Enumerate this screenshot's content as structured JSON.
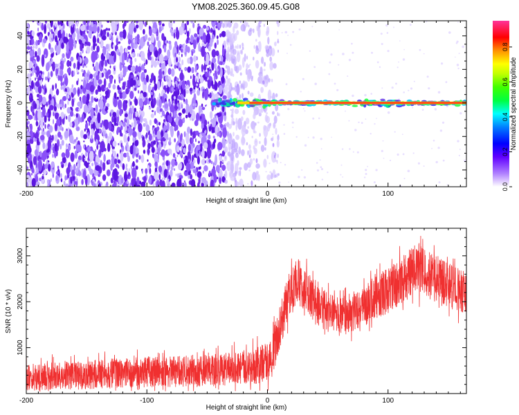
{
  "title": "YM08.2025.360.09.45.G08",
  "colors": {
    "snr_line": "#f03030",
    "noise": "#7a1fd8",
    "colormap": [
      "#ffffff",
      "#a020f0",
      "#5a00ff",
      "#0000ff",
      "#00ffff",
      "#00ff00",
      "#ffff00",
      "#ff8000",
      "#ff0000",
      "#ff3399"
    ]
  },
  "chart_data": [
    {
      "type": "heatmap",
      "title": "YM08.2025.360.09.45.G08",
      "xlabel": "Height of straight line (km)",
      "ylabel": "Frequency (Hz)",
      "xlim": [
        -200,
        165
      ],
      "ylim": [
        -50,
        49
      ],
      "x_ticks": [
        -200,
        -100,
        0,
        100
      ],
      "y_ticks": [
        -40,
        -20,
        0,
        20,
        40
      ],
      "grid": false,
      "colorbar": {
        "label": "Normalized spectral amplitude",
        "range": [
          0.0,
          0.95
        ],
        "ticks": [
          0.0,
          0.2,
          0.4,
          0.6,
          0.8
        ]
      },
      "features": {
        "noise_region_x": [
          -200,
          -10
        ],
        "signal_line_frequency_hz": 0,
        "signal_line_x": [
          -45,
          165
        ],
        "dominant_amplitude": 0.9
      }
    },
    {
      "type": "line",
      "xlabel": "Height of straight line (km)",
      "ylabel": "SNR (10 * v/v)",
      "xlim": [
        -200,
        165
      ],
      "ylim": [
        0,
        3600
      ],
      "x_ticks": [
        -200,
        -100,
        0,
        100
      ],
      "y_ticks": [
        1000,
        2000,
        3000
      ],
      "grid": false,
      "series": [
        {
          "x": [
            -200,
            -180,
            -160,
            -140,
            -120,
            -100,
            -80,
            -60,
            -40,
            -20,
            -10,
            0,
            5,
            10,
            15,
            20,
            25,
            30,
            40,
            50,
            60,
            70,
            80,
            90,
            100,
            110,
            120,
            125,
            130,
            140,
            150,
            160,
            165
          ],
          "y": [
            350,
            380,
            400,
            420,
            450,
            470,
            480,
            500,
            520,
            560,
            600,
            700,
            950,
            1400,
            1900,
            2300,
            2450,
            2300,
            1950,
            1750,
            1700,
            1780,
            1900,
            2100,
            2250,
            2450,
            2650,
            2750,
            2650,
            2500,
            2350,
            2250,
            2200
          ],
          "spread": [
            300,
            300,
            320,
            320,
            330,
            340,
            340,
            350,
            350,
            380,
            400,
            420,
            450,
            480,
            500,
            500,
            500,
            480,
            450,
            420,
            400,
            420,
            450,
            480,
            500,
            520,
            550,
            550,
            550,
            520,
            500,
            480,
            480
          ]
        }
      ]
    }
  ]
}
